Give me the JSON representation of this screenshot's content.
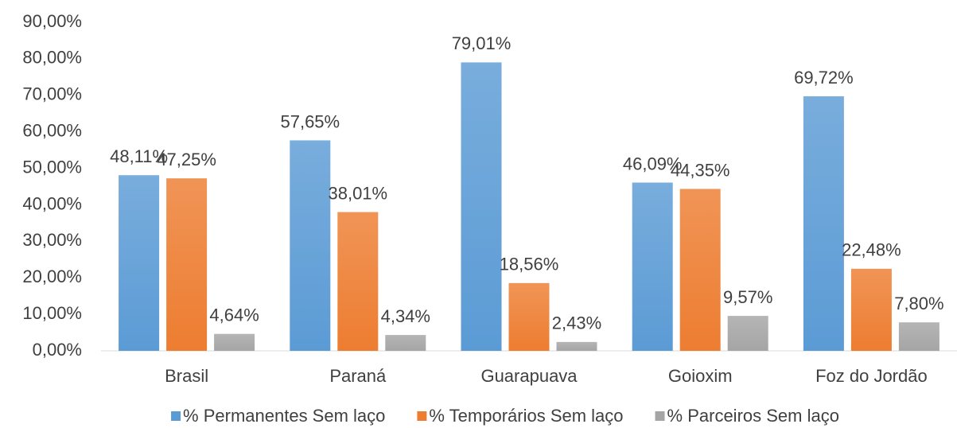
{
  "chart_data": {
    "type": "bar",
    "categories": [
      "Brasil",
      "Paraná",
      "Guarapuava",
      "Goioxim",
      "Foz do Jordão"
    ],
    "series": [
      {
        "name": "% Permanentes Sem laço",
        "color": "#5b9bd5",
        "values": [
          48.11,
          57.65,
          79.01,
          46.09,
          69.72
        ],
        "value_labels": [
          "48,11%",
          "57,65%",
          "79,01%",
          "46,09%",
          "69,72%"
        ]
      },
      {
        "name": "% Temporários Sem laço",
        "color": "#ed7d31",
        "values": [
          47.25,
          38.01,
          18.56,
          44.35,
          22.48
        ],
        "value_labels": [
          "47,25%",
          "38,01%",
          "18,56%",
          "44,35%",
          "22,48%"
        ]
      },
      {
        "name": "% Parceiros Sem laço",
        "color": "#a5a5a5",
        "values": [
          4.64,
          4.34,
          2.43,
          9.57,
          7.8
        ],
        "value_labels": [
          "4,64%",
          "4,34%",
          "2,43%",
          "9,57%",
          "7,80%"
        ]
      }
    ],
    "ylim": [
      0,
      90
    ],
    "yticks": [
      {
        "value": 0,
        "label": "0,00%"
      },
      {
        "value": 10,
        "label": "10,00%"
      },
      {
        "value": 20,
        "label": "20,00%"
      },
      {
        "value": 30,
        "label": "30,00%"
      },
      {
        "value": 40,
        "label": "40,00%"
      },
      {
        "value": 50,
        "label": "50,00%"
      },
      {
        "value": 60,
        "label": "60,00%"
      },
      {
        "value": 70,
        "label": "70,00%"
      },
      {
        "value": 80,
        "label": "80,00%"
      },
      {
        "value": 90,
        "label": "90,00%"
      }
    ],
    "grid": false,
    "legend": "bottom"
  }
}
